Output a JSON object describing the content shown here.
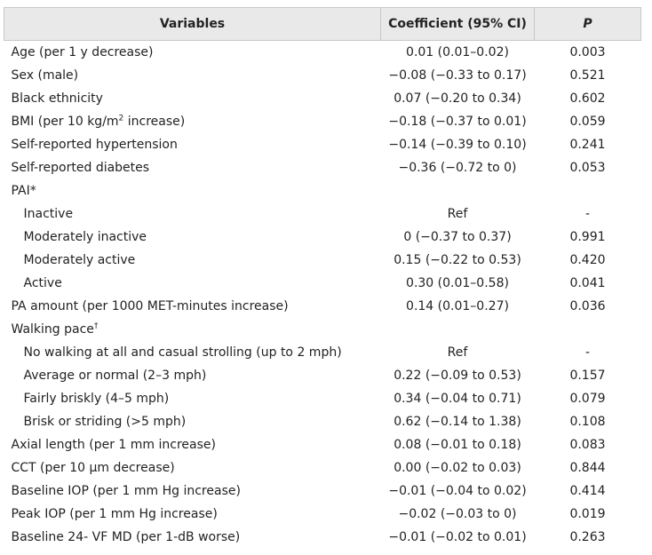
{
  "headers": {
    "variables": "Variables",
    "coefficient": "Coefficient (95% CI)",
    "p": "P"
  },
  "rows": [
    {
      "label": "Age (per 1 y decrease)",
      "coef": "0.01 (0.01–0.02)",
      "p": "0.003"
    },
    {
      "label": "Sex (male)",
      "coef": "−0.08 (−0.33 to 0.17)",
      "p": "0.521"
    },
    {
      "label": "Black ethnicity",
      "coef": "0.07 (−0.20 to 0.34)",
      "p": "0.602"
    },
    {
      "label_pre": "BMI (per 10 kg/m",
      "label_sup": "2",
      "label_post": " increase)",
      "coef": "−0.18 (−0.37 to 0.01)",
      "p": "0.059"
    },
    {
      "label": "Self-reported hypertension",
      "coef": "−0.14 (−0.39 to 0.10)",
      "p": "0.241"
    },
    {
      "label": "Self-reported diabetes",
      "coef": "−0.36 (−0.72 to 0)",
      "p": "0.053"
    },
    {
      "label": "PAI*",
      "coef": "",
      "p": ""
    },
    {
      "label": "Inactive",
      "coef": "Ref",
      "p": "-"
    },
    {
      "label": "Moderately inactive",
      "coef": "0 (−0.37 to 0.37)",
      "p": "0.991"
    },
    {
      "label": "Moderately active",
      "coef": "0.15 (−0.22 to 0.53)",
      "p": "0.420"
    },
    {
      "label": "Active",
      "coef": "0.30 (0.01–0.58)",
      "p": "0.041"
    },
    {
      "label": "PA amount (per 1000 MET-minutes increase)",
      "coef": "0.14 (0.01–0.27)",
      "p": "0.036"
    },
    {
      "label_pre": "Walking pace",
      "label_sup": "†",
      "label_post": "",
      "coef": "",
      "p": ""
    },
    {
      "label": "No walking at all and casual strolling (up to 2 mph)",
      "coef": "Ref",
      "p": "-"
    },
    {
      "label": "Average or normal (2–3 mph)",
      "coef": "0.22 (−0.09 to 0.53)",
      "p": "0.157"
    },
    {
      "label": "Fairly briskly (4–5 mph)",
      "coef": "0.34 (−0.04 to 0.71)",
      "p": "0.079"
    },
    {
      "label": "Brisk or striding (>5 mph)",
      "coef": "0.62 (−0.14 to 1.38)",
      "p": "0.108"
    },
    {
      "label": "Axial length (per 1 mm increase)",
      "coef": "0.08 (−0.01 to 0.18)",
      "p": "0.083"
    },
    {
      "label": "CCT (per 10 μm decrease)",
      "coef": "0.00 (−0.02 to 0.03)",
      "p": "0.844"
    },
    {
      "label": "Baseline IOP (per 1 mm Hg increase)",
      "coef": "−0.01 (−0.04 to 0.02)",
      "p": "0.414"
    },
    {
      "label": "Peak IOP (per 1 mm Hg increase)",
      "coef": "−0.02 (−0.03 to 0)",
      "p": "0.019"
    },
    {
      "label": "Baseline 24- VF MD (per 1-dB worse)",
      "coef": "−0.01 (−0.02 to 0.01)",
      "p": "0.263"
    }
  ]
}
